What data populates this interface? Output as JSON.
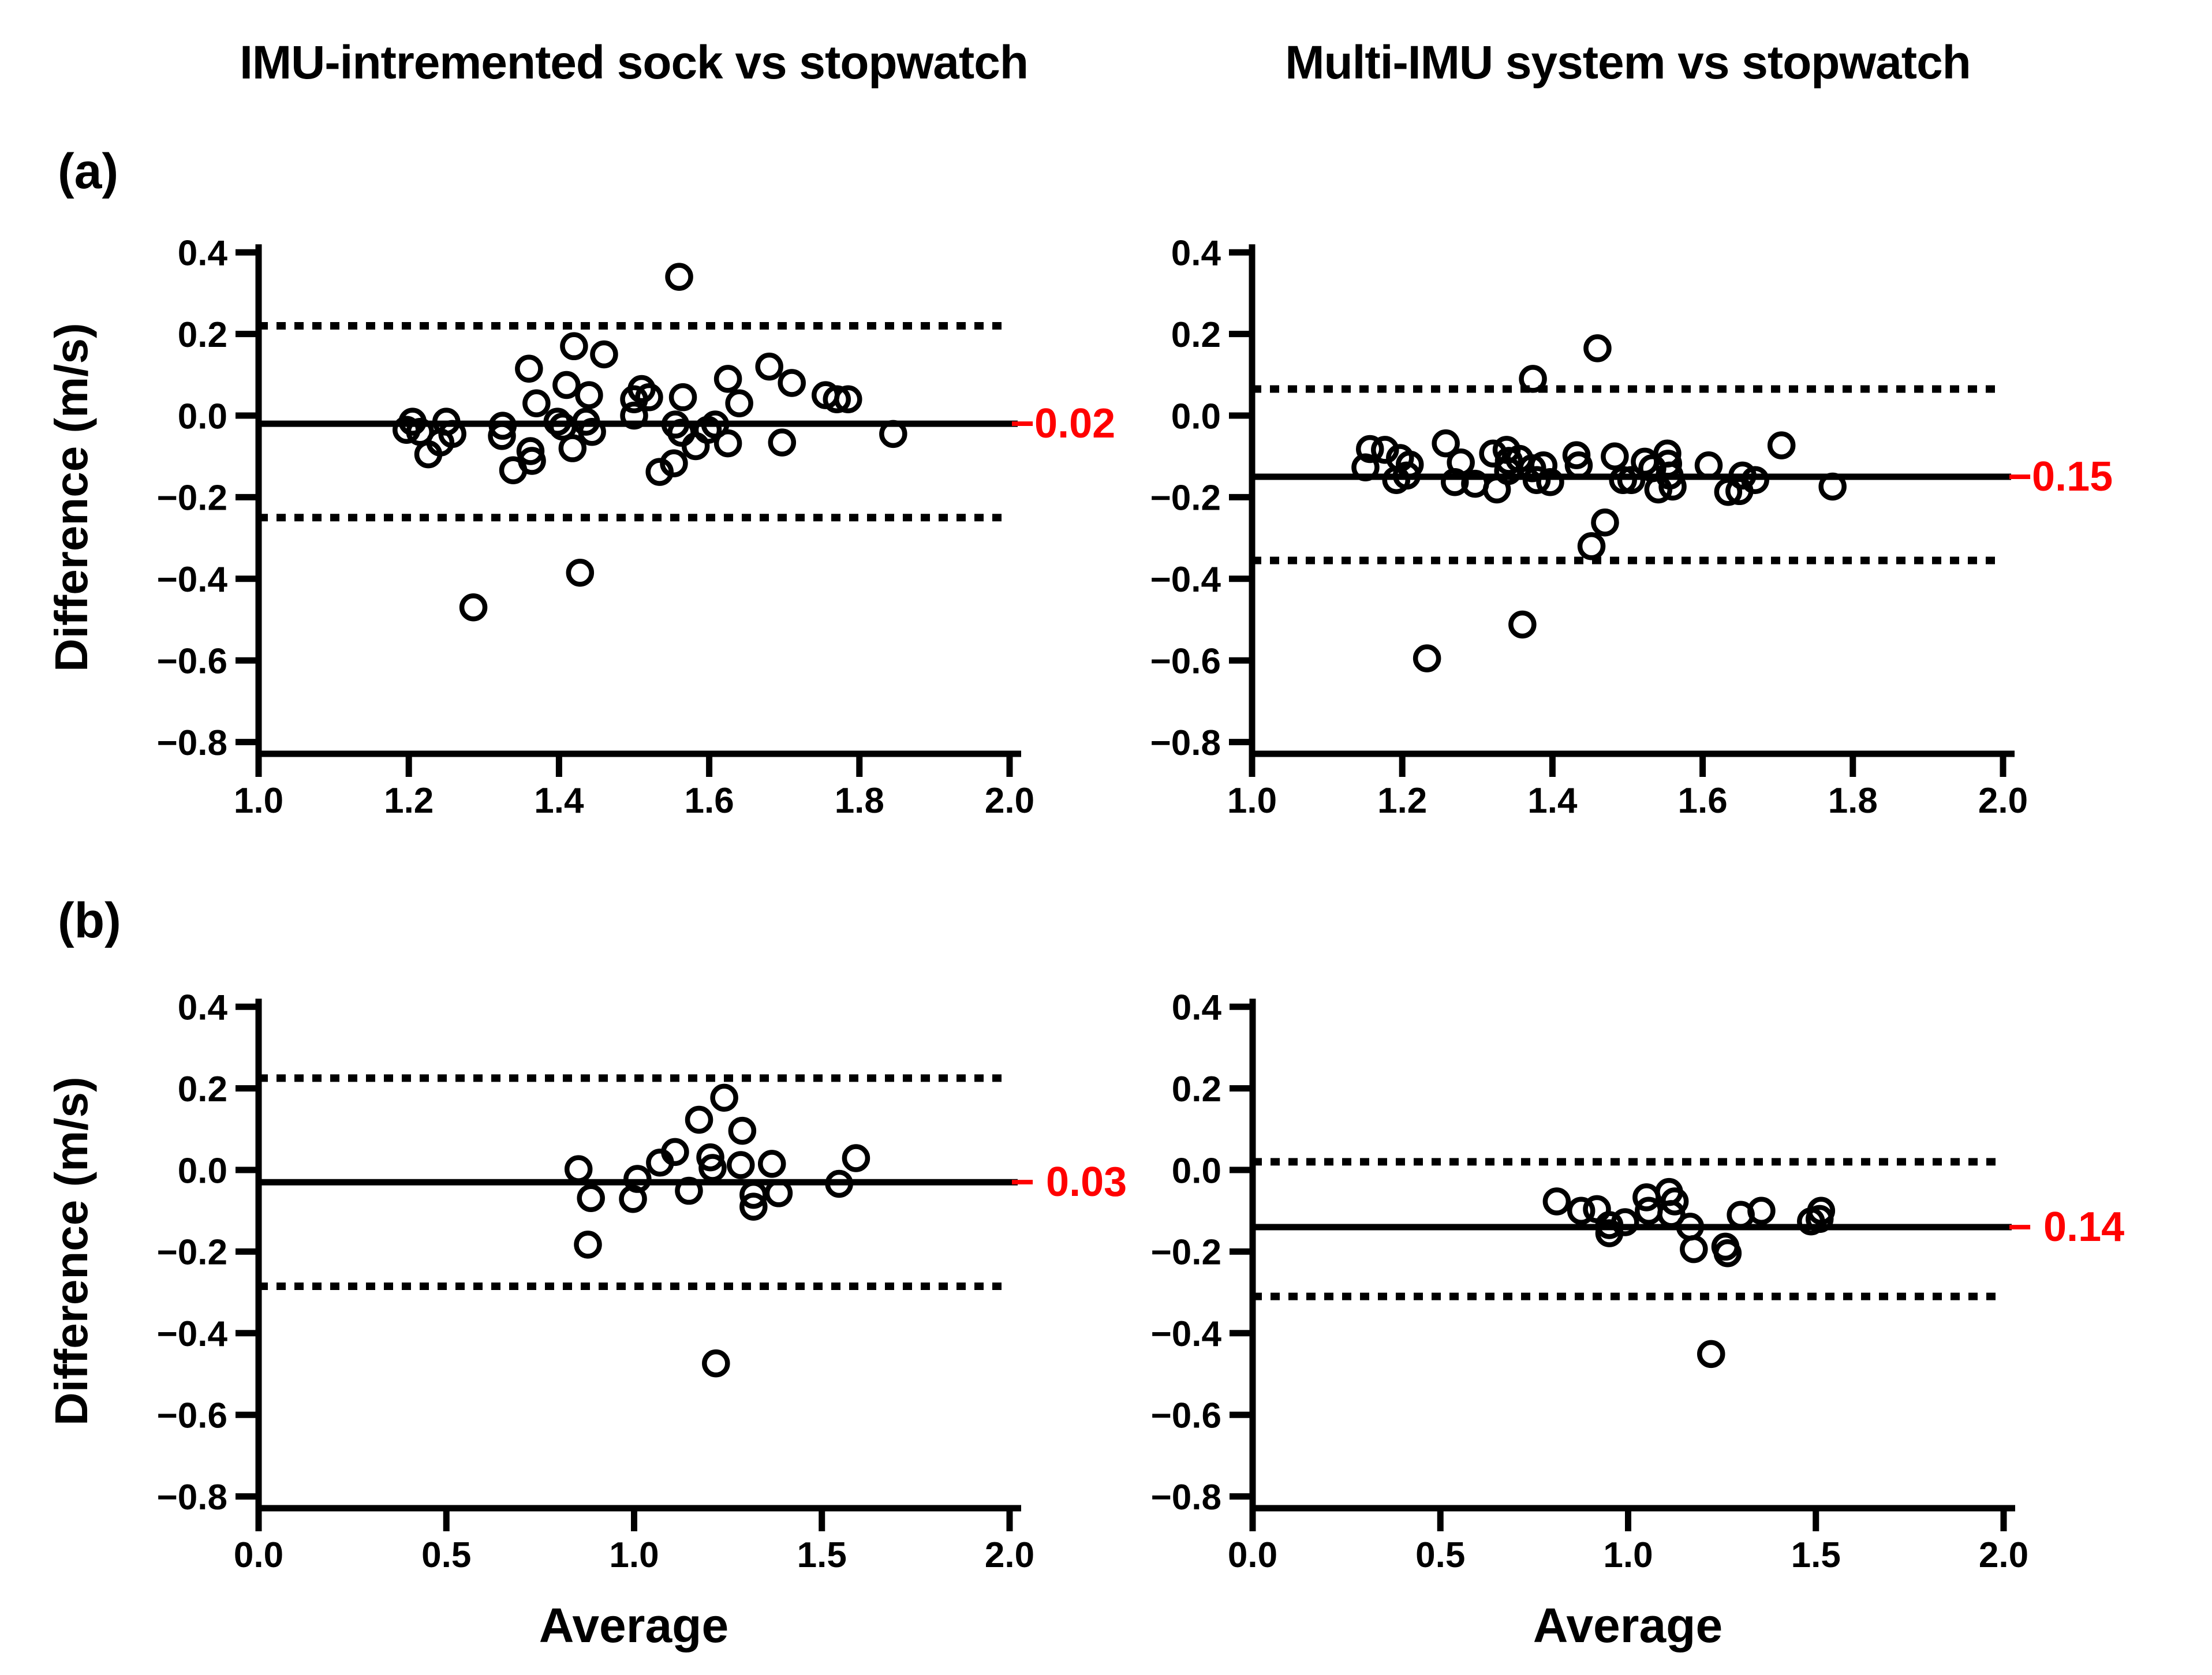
{
  "figure": {
    "title_left": "IMU-intremented sock vs stopwatch",
    "title_right": "Multi-IMU system vs stopwatch",
    "label_a": "(a)",
    "label_b": "(b)",
    "y_axis_label": "Difference (m/s)",
    "x_axis_label": "Average",
    "annotation_color": "#ff0000",
    "marker_color": "#000000"
  },
  "chart_data": [
    {
      "id": "a-left",
      "type": "scatter",
      "panel": "a",
      "title": "IMU-intremented sock vs stopwatch",
      "xlabel": "",
      "ylabel": "Difference (m/s)",
      "xlim": [
        1.0,
        2.0
      ],
      "ylim": [
        -0.8,
        0.4
      ],
      "xticks": [
        "1.0",
        "1.2",
        "1.4",
        "1.6",
        "1.8",
        "2.0"
      ],
      "yticks": [
        "0.4",
        "0.2",
        "0.0",
        "−0.2",
        "−0.4",
        "−0.6",
        "−0.8"
      ],
      "mean": -0.02,
      "mean_label": "−0.02",
      "loa_upper": 0.22,
      "loa_lower": -0.25,
      "legend": "none",
      "grid": false,
      "points": [
        [
          1.56,
          0.34
        ],
        [
          1.42,
          0.17
        ],
        [
          1.46,
          0.15
        ],
        [
          1.36,
          0.115
        ],
        [
          1.68,
          0.12
        ],
        [
          1.41,
          0.075
        ],
        [
          1.71,
          0.08
        ],
        [
          1.625,
          0.09
        ],
        [
          1.51,
          0.065
        ],
        [
          1.44,
          0.05
        ],
        [
          1.5,
          0.04
        ],
        [
          1.52,
          0.045
        ],
        [
          1.565,
          0.045
        ],
        [
          1.64,
          0.03
        ],
        [
          1.37,
          0.03
        ],
        [
          1.755,
          0.05
        ],
        [
          1.77,
          0.04
        ],
        [
          1.785,
          0.04
        ],
        [
          1.205,
          -0.015
        ],
        [
          1.197,
          -0.035
        ],
        [
          1.215,
          -0.04
        ],
        [
          1.25,
          -0.015
        ],
        [
          1.258,
          -0.045
        ],
        [
          1.325,
          -0.025
        ],
        [
          1.324,
          -0.05
        ],
        [
          1.398,
          -0.015
        ],
        [
          1.405,
          -0.027
        ],
        [
          1.436,
          -0.015
        ],
        [
          1.444,
          -0.04
        ],
        [
          1.5,
          0.0
        ],
        [
          1.555,
          -0.022
        ],
        [
          1.563,
          -0.042
        ],
        [
          1.582,
          -0.075
        ],
        [
          1.598,
          -0.035
        ],
        [
          1.608,
          -0.022
        ],
        [
          1.625,
          -0.068
        ],
        [
          1.697,
          -0.066
        ],
        [
          1.845,
          -0.045
        ],
        [
          1.226,
          -0.095
        ],
        [
          1.242,
          -0.066
        ],
        [
          1.362,
          -0.087
        ],
        [
          1.339,
          -0.134
        ],
        [
          1.364,
          -0.111
        ],
        [
          1.418,
          -0.08
        ],
        [
          1.534,
          -0.138
        ],
        [
          1.553,
          -0.117
        ],
        [
          1.428,
          -0.385
        ],
        [
          1.286,
          -0.47
        ]
      ]
    },
    {
      "id": "a-right",
      "type": "scatter",
      "panel": "a",
      "title": "Multi-IMU system vs stopwatch",
      "xlabel": "",
      "ylabel": "Difference (m/s)",
      "xlim": [
        1.0,
        2.0
      ],
      "ylim": [
        -0.8,
        0.4
      ],
      "xticks": [
        "1.0",
        "1.2",
        "1.4",
        "1.6",
        "1.8",
        "2.0"
      ],
      "yticks": [
        "0.4",
        "0.2",
        "0.0",
        "−0.2",
        "−0.4",
        "−0.6",
        "−0.8"
      ],
      "mean": -0.15,
      "mean_label": "−0.15",
      "loa_upper": 0.065,
      "loa_lower": -0.355,
      "legend": "none",
      "grid": false,
      "points": [
        [
          1.46,
          0.165
        ],
        [
          1.374,
          0.09
        ],
        [
          1.157,
          -0.082
        ],
        [
          1.177,
          -0.084
        ],
        [
          1.151,
          -0.127
        ],
        [
          1.197,
          -0.104
        ],
        [
          1.21,
          -0.12
        ],
        [
          1.192,
          -0.158
        ],
        [
          1.206,
          -0.147
        ],
        [
          1.258,
          -0.068
        ],
        [
          1.278,
          -0.115
        ],
        [
          1.27,
          -0.163
        ],
        [
          1.297,
          -0.167
        ],
        [
          1.321,
          -0.093
        ],
        [
          1.326,
          -0.181
        ],
        [
          1.339,
          -0.084
        ],
        [
          1.342,
          -0.111
        ],
        [
          1.341,
          -0.136
        ],
        [
          1.356,
          -0.106
        ],
        [
          1.373,
          -0.129
        ],
        [
          1.379,
          -0.158
        ],
        [
          1.388,
          -0.122
        ],
        [
          1.397,
          -0.163
        ],
        [
          1.432,
          -0.097
        ],
        [
          1.435,
          -0.122
        ],
        [
          1.483,
          -0.1
        ],
        [
          1.494,
          -0.158
        ],
        [
          1.505,
          -0.158
        ],
        [
          1.523,
          -0.113
        ],
        [
          1.533,
          -0.129
        ],
        [
          1.541,
          -0.181
        ],
        [
          1.553,
          -0.093
        ],
        [
          1.554,
          -0.118
        ],
        [
          1.556,
          -0.147
        ],
        [
          1.56,
          -0.174
        ],
        [
          1.608,
          -0.122
        ],
        [
          1.634,
          -0.187
        ],
        [
          1.649,
          -0.185
        ],
        [
          1.653,
          -0.147
        ],
        [
          1.67,
          -0.158
        ],
        [
          1.705,
          -0.073
        ],
        [
          1.773,
          -0.174
        ],
        [
          1.47,
          -0.262
        ],
        [
          1.452,
          -0.32
        ],
        [
          1.36,
          -0.512
        ],
        [
          1.233,
          -0.595
        ]
      ]
    },
    {
      "id": "b-left",
      "type": "scatter",
      "panel": "b",
      "title": "IMU-intremented sock vs stopwatch",
      "xlabel": "Average",
      "ylabel": "Difference (m/s)",
      "xlim": [
        0.0,
        2.0
      ],
      "ylim": [
        -0.8,
        0.4
      ],
      "xticks": [
        "0.0",
        "0.5",
        "1.0",
        "1.5",
        "2.0"
      ],
      "yticks": [
        "0.4",
        "0.2",
        "0.0",
        "−0.2",
        "−0.4",
        "−0.6",
        "−0.8"
      ],
      "mean": -0.03,
      "mean_label": "− 0.03",
      "loa_upper": 0.225,
      "loa_lower": -0.285,
      "legend": "none",
      "grid": false,
      "points": [
        [
          0.852,
          0.002
        ],
        [
          0.885,
          -0.069
        ],
        [
          0.877,
          -0.183
        ],
        [
          0.997,
          -0.071
        ],
        [
          1.009,
          -0.022
        ],
        [
          1.069,
          0.018
        ],
        [
          1.109,
          0.044
        ],
        [
          1.173,
          0.123
        ],
        [
          1.203,
          0.031
        ],
        [
          1.209,
          0.005
        ],
        [
          1.146,
          -0.051
        ],
        [
          1.24,
          0.177
        ],
        [
          1.288,
          0.096
        ],
        [
          1.284,
          0.012
        ],
        [
          1.318,
          -0.061
        ],
        [
          1.318,
          -0.09
        ],
        [
          1.367,
          0.015
        ],
        [
          1.385,
          -0.057
        ],
        [
          1.546,
          -0.034
        ],
        [
          1.591,
          0.029
        ],
        [
          1.218,
          -0.474
        ]
      ]
    },
    {
      "id": "b-right",
      "type": "scatter",
      "panel": "b",
      "title": "Multi-IMU system vs stopwatch",
      "xlabel": "Average",
      "ylabel": "Difference (m/s)",
      "xlim": [
        0.0,
        2.0
      ],
      "ylim": [
        -0.8,
        0.4
      ],
      "xticks": [
        "0.0",
        "0.5",
        "1.0",
        "1.5",
        "2.0"
      ],
      "yticks": [
        "0.4",
        "0.2",
        "0.0",
        "−0.2",
        "−0.4",
        "−0.6",
        "−0.8"
      ],
      "mean": -0.14,
      "mean_label": "− 0.14",
      "loa_upper": 0.02,
      "loa_lower": -0.31,
      "legend": "none",
      "grid": false,
      "points": [
        [
          0.81,
          -0.077
        ],
        [
          0.875,
          -0.1
        ],
        [
          0.917,
          -0.096
        ],
        [
          0.95,
          -0.155
        ],
        [
          0.95,
          -0.135
        ],
        [
          0.992,
          -0.128
        ],
        [
          1.049,
          -0.067
        ],
        [
          1.055,
          -0.1
        ],
        [
          1.109,
          -0.054
        ],
        [
          1.115,
          -0.108
        ],
        [
          1.124,
          -0.077
        ],
        [
          1.165,
          -0.139
        ],
        [
          1.175,
          -0.194
        ],
        [
          1.259,
          -0.188
        ],
        [
          1.265,
          -0.204
        ],
        [
          1.3,
          -0.11
        ],
        [
          1.355,
          -0.1
        ],
        [
          1.487,
          -0.126
        ],
        [
          1.514,
          -0.1
        ],
        [
          1.51,
          -0.12
        ],
        [
          1.221,
          -0.451
        ]
      ]
    }
  ]
}
